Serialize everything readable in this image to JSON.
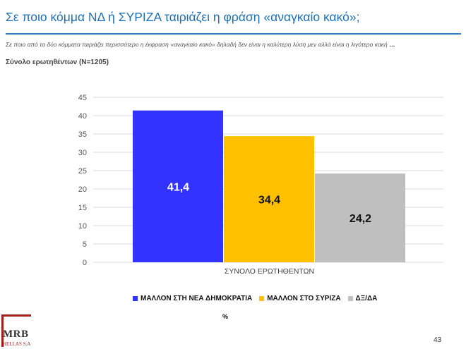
{
  "header": {
    "title": "Σε ποιο κόμμα ΝΔ ή ΣΥΡΙΖΑ ταιριάζει η φράση «αναγκαίο κακό»;",
    "question": "Σε ποιο από τα δύο κόμματα ταιριάζει περισσότερο η έκφραση «αναγκαίο κακό» δηλαδή δεν είναι η καλύτερη λύση μεν αλλά είναι η λιγότερο κακή",
    "question_ellipsis": "…",
    "base": "Σύνολο ερωτηθέντων (N=1205)"
  },
  "chart_data": {
    "type": "bar",
    "categories": [
      "ΣΥΝΟΛΟ ΕΡΩΤΗΘΕΝΤΩΝ"
    ],
    "series": [
      {
        "name": "ΜΑΛΛΟΝ ΣΤΗ ΝΕΑ ΔΗΜΟΚΡΑΤΙΑ",
        "values": [
          41.4
        ],
        "label": "41,4",
        "color": "#3333ff",
        "label_color": "#ffffff"
      },
      {
        "name": "ΜΑΛΛΟΝ ΣΤΟ ΣΥΡΙΖΑ",
        "values": [
          34.4
        ],
        "label": "34,4",
        "color": "#ffc000",
        "label_color": "#111111"
      },
      {
        "name": "ΔΞ/ΔΑ",
        "values": [
          24.2
        ],
        "label": "24,2",
        "color": "#bfbfbf",
        "label_color": "#111111"
      }
    ],
    "ylim": [
      0,
      45
    ],
    "yticks": [
      0,
      5,
      10,
      15,
      20,
      25,
      30,
      35,
      40,
      45
    ],
    "grid": true,
    "legend": "bottom",
    "unit": "%"
  },
  "footer": {
    "page_number": "43",
    "logo_text": "MRB",
    "logo_sub": "HELLAS S.A"
  }
}
